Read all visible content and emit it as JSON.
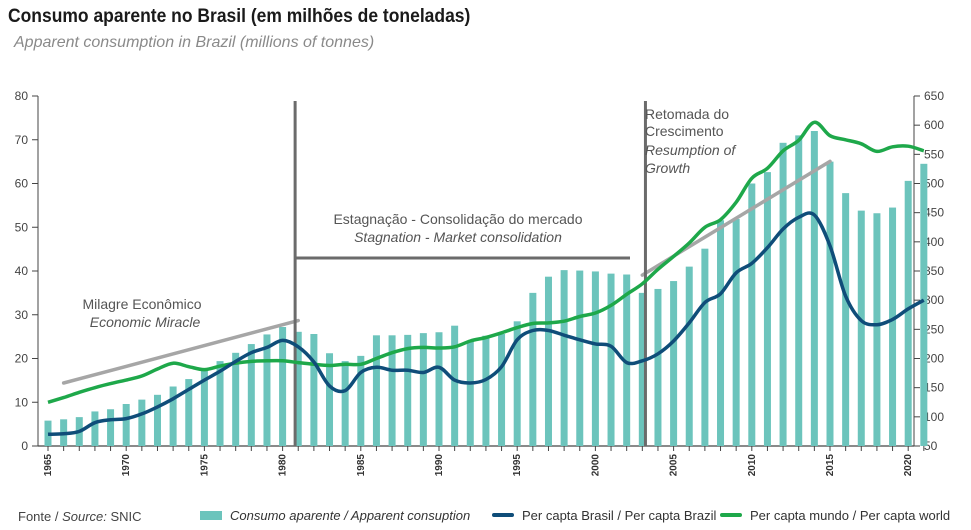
{
  "title": "Consumo aparente no Brasil (em milhões de toneladas)",
  "subtitle": "Apparent consumption in Brazil (millions of tonnes)",
  "source": {
    "label": "Fonte / ",
    "italic": "Source:",
    "value": " SNIC"
  },
  "colors": {
    "bar": "#6cc4bc",
    "brazil": "#0f4d79",
    "world": "#1ea84a",
    "trend": "#a6a6a6",
    "divider": "#6b6b6b"
  },
  "legend": [
    {
      "label": "Consumo aparente / Apparent consuption",
      "kind": "bar",
      "color": "#6cc4bc"
    },
    {
      "label": "Per capta Brasil / Per capta Brazil",
      "kind": "line",
      "color": "#0f4d79"
    },
    {
      "label": "Per capta mundo / Per capta world",
      "kind": "line",
      "color": "#1ea84a"
    }
  ],
  "annotations": {
    "milagre": {
      "pt": "Milagre Econômico",
      "en": "Economic Miracle"
    },
    "estagnacao": {
      "pt": "Estagnação  - Consolidação do mercado",
      "en": "Stagnation - Market consolidation"
    },
    "retomada": {
      "pt1": "Retomada do",
      "pt2": "Crescimento",
      "en1": "Resumption of",
      "en2": "Growth"
    }
  },
  "chart_data": {
    "type": "bar",
    "x": [
      1965,
      1966,
      1967,
      1968,
      1969,
      1970,
      1971,
      1972,
      1973,
      1974,
      1975,
      1976,
      1977,
      1978,
      1979,
      1980,
      1981,
      1982,
      1983,
      1984,
      1985,
      1986,
      1987,
      1988,
      1989,
      1990,
      1991,
      1992,
      1993,
      1994,
      1995,
      1996,
      1997,
      1998,
      1999,
      2000,
      2001,
      2002,
      2003,
      2004,
      2005,
      2006,
      2007,
      2008,
      2009,
      2010,
      2011,
      2012,
      2013,
      2014,
      2015,
      2016,
      2017,
      2018,
      2019,
      2020,
      2021
    ],
    "xticks": [
      1965,
      1970,
      1975,
      1980,
      1985,
      1990,
      1995,
      2000,
      2005,
      2010,
      2015,
      2020
    ],
    "ylim": [
      0,
      80
    ],
    "yticks": [
      0,
      10,
      20,
      30,
      40,
      50,
      60,
      70,
      80
    ],
    "y2lim": [
      50,
      650
    ],
    "y2ticks": [
      50,
      100,
      150,
      200,
      250,
      300,
      350,
      400,
      450,
      500,
      550,
      600,
      650
    ],
    "series": [
      {
        "name": "Consumo aparente / Apparent consuption",
        "type": "bar",
        "axis": "left",
        "values": [
          5.8,
          6.1,
          6.6,
          7.9,
          8.4,
          9.6,
          10.6,
          11.7,
          13.6,
          15.3,
          17.3,
          19.4,
          21.3,
          23.3,
          25.5,
          27.2,
          26.1,
          25.6,
          21.2,
          19.4,
          20.6,
          25.3,
          25.3,
          25.4,
          25.8,
          26.0,
          27.5,
          24.0,
          25.2,
          25.6,
          28.5,
          35.0,
          38.7,
          40.2,
          40.1,
          39.9,
          39.4,
          39.2,
          35.0,
          35.9,
          37.7,
          41.0,
          45.1,
          51.6,
          51.9,
          60.0,
          62.6,
          69.3,
          71.0,
          72.0,
          65.0,
          57.8,
          53.8,
          53.2,
          54.5,
          60.6,
          64.5
        ]
      },
      {
        "name": "Per capta Brasil / Per capta Brazil",
        "type": "line",
        "axis": "right",
        "values": [
          70,
          71,
          75,
          90,
          95,
          97,
          105,
          117,
          131,
          147,
          163,
          178,
          195,
          210,
          219,
          231,
          220,
          194,
          153,
          145,
          176,
          185,
          180,
          180,
          176,
          185,
          163,
          158,
          164,
          186,
          232,
          248,
          248,
          240,
          232,
          225,
          221,
          193,
          196,
          208,
          230,
          261,
          296,
          311,
          347,
          363,
          390,
          422,
          442,
          446,
          393,
          307,
          265,
          258,
          267,
          285,
          300
        ]
      },
      {
        "name": "Per capta mundo / Per capta world",
        "type": "line",
        "axis": "right",
        "values": [
          125,
          133,
          142,
          150,
          157,
          163,
          170,
          182,
          192,
          186,
          181,
          187,
          192,
          195,
          196,
          196,
          193,
          190,
          188,
          190,
          190,
          200,
          210,
          217,
          219,
          218,
          220,
          230,
          236,
          244,
          253,
          260,
          261,
          264,
          272,
          278,
          291,
          310,
          328,
          353,
          375,
          398,
          425,
          438,
          468,
          509,
          526,
          556,
          574,
          605,
          582,
          575,
          568,
          555,
          563,
          564,
          556
        ]
      }
    ],
    "trend_lines": [
      {
        "from": [
          1966,
          158
        ],
        "to": [
          1981,
          265
        ]
      },
      {
        "from": [
          2003,
          343
        ],
        "to": [
          2015,
          538
        ]
      }
    ],
    "dividers": [
      1980.8,
      2003.2
    ]
  }
}
